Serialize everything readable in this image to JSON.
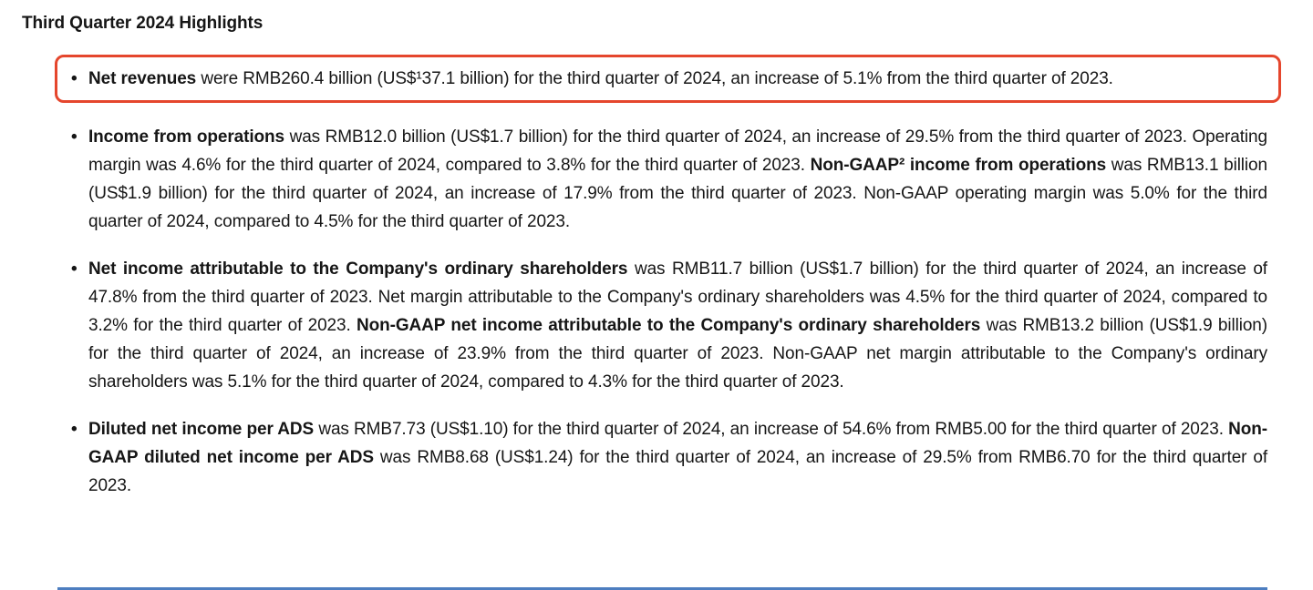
{
  "colors": {
    "highlight-border": "#e5462d",
    "bottom-rule": "#4d7ec0",
    "text": "#161616"
  },
  "glyphs": {
    "bullet": "•"
  },
  "page": {
    "title": "Third Quarter 2024 Highlights"
  },
  "highlights": [
    {
      "name": "net-revenues",
      "highlighted": true,
      "segments": [
        {
          "text": "Net revenues",
          "bold": true
        },
        {
          "text": " were RMB260.4 billion (US$¹37.1 billion) for the third quarter of 2024, an increase of 5.1% from the third quarter of 2023.",
          "bold": false
        }
      ]
    },
    {
      "name": "income-from-operations",
      "highlighted": false,
      "segments": [
        {
          "text": "Income from operations",
          "bold": true
        },
        {
          "text": " was RMB12.0 billion (US$1.7 billion) for the third quarter of 2024, an increase of 29.5% from the third quarter of 2023. Operating margin was 4.6% for the third quarter of 2024, compared to 3.8% for the third quarter of 2023. ",
          "bold": false
        },
        {
          "text": "Non-GAAP² income from operations",
          "bold": true
        },
        {
          "text": " was RMB13.1 billion (US$1.9 billion) for the third quarter of 2024, an increase of 17.9% from the third quarter of 2023. Non-GAAP operating margin was 5.0% for the third quarter of 2024, compared to 4.5% for the third quarter of 2023.",
          "bold": false
        }
      ]
    },
    {
      "name": "net-income-ordinary-shareholders",
      "highlighted": false,
      "segments": [
        {
          "text": "Net income attributable to the Company's ordinary shareholders",
          "bold": true
        },
        {
          "text": " was RMB11.7 billion (US$1.7 billion) for the third quarter of 2024, an increase of 47.8% from the third quarter of 2023. Net margin attributable to the Company's ordinary shareholders was 4.5% for the third quarter of 2024, compared to 3.2% for the third quarter of 2023. ",
          "bold": false
        },
        {
          "text": "Non-GAAP net income attributable to the Company's ordinary shareholders",
          "bold": true
        },
        {
          "text": " was RMB13.2 billion (US$1.9 billion) for the third quarter of 2024, an increase of 23.9% from the third quarter of 2023. Non-GAAP net margin attributable to the Company's ordinary shareholders was 5.1% for the third quarter of 2024, compared to 4.3% for the third quarter of 2023.",
          "bold": false
        }
      ]
    },
    {
      "name": "diluted-net-income-per-ads",
      "highlighted": false,
      "segments": [
        {
          "text": "Diluted net income per ADS",
          "bold": true
        },
        {
          "text": " was RMB7.73 (US$1.10) for the third quarter of 2024, an increase of 54.6% from RMB5.00 for the third quarter of 2023. ",
          "bold": false
        },
        {
          "text": "Non-GAAP diluted net income per ADS",
          "bold": true
        },
        {
          "text": " was RMB8.68 (US$1.24) for the third quarter of 2024, an increase of 29.5% from RMB6.70 for the third quarter of 2023.",
          "bold": false
        }
      ]
    }
  ]
}
